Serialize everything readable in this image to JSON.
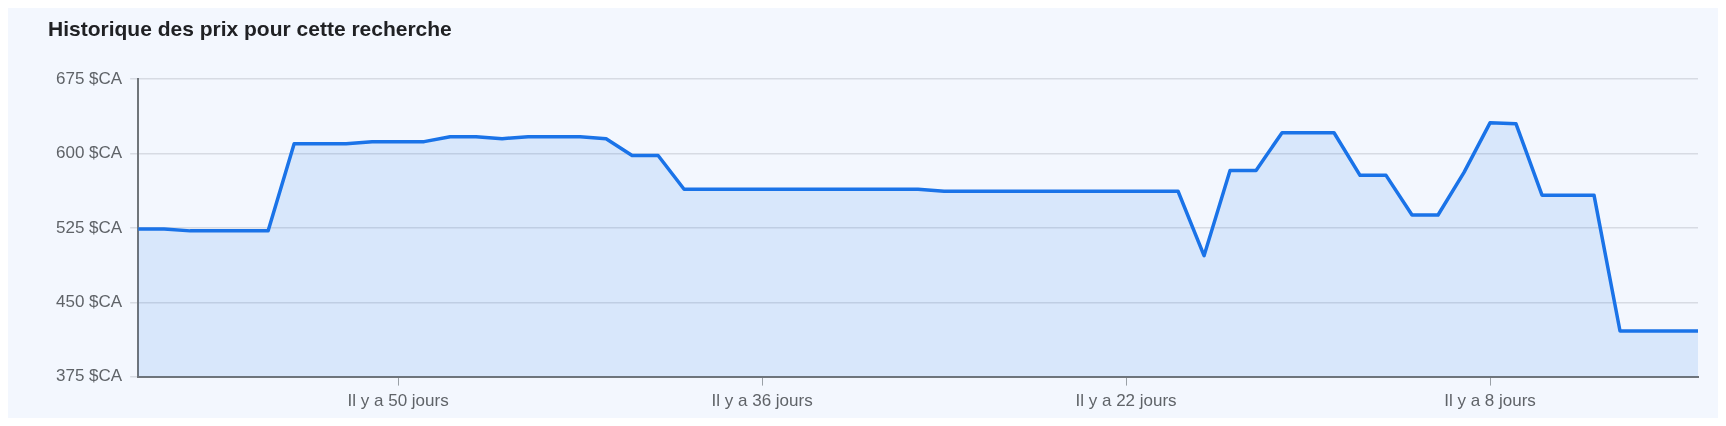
{
  "chart_data": {
    "type": "area",
    "title": "Historique des prix pour cette recherche",
    "categories": [
      null,
      null,
      null,
      null,
      null,
      null,
      null,
      null,
      null,
      null,
      "Il y a 50 jours",
      null,
      null,
      null,
      null,
      null,
      null,
      null,
      null,
      null,
      null,
      null,
      null,
      null,
      "Il y a 36 jours",
      null,
      null,
      null,
      null,
      null,
      null,
      null,
      null,
      null,
      null,
      null,
      null,
      null,
      "Il y a 22 jours",
      null,
      null,
      null,
      null,
      null,
      null,
      null,
      null,
      null,
      null,
      null,
      null,
      null,
      "Il y a 8 jours",
      null,
      null,
      null,
      null,
      null,
      null,
      null,
      null
    ],
    "series": [
      {
        "color": "#1a73e8",
        "values": [
          524,
          524,
          522,
          522,
          522,
          522,
          610,
          610,
          610,
          612,
          612,
          612,
          617,
          617,
          615,
          617,
          617,
          617,
          615,
          598,
          598,
          564,
          564,
          564,
          564,
          564,
          564,
          564,
          564,
          564,
          564,
          562,
          562,
          562,
          562,
          562,
          562,
          562,
          562,
          562,
          562,
          497,
          583,
          583,
          621,
          621,
          621,
          578,
          578,
          538,
          538,
          581,
          631,
          630,
          558,
          558,
          558,
          421,
          421,
          421,
          421
        ]
      }
    ],
    "ylim": [
      375,
      675
    ],
    "yticks": [
      {
        "value": 375,
        "label": "375 $CA"
      },
      {
        "value": 450,
        "label": "450 $CA"
      },
      {
        "value": 525,
        "label": "525 $CA"
      },
      {
        "value": 600,
        "label": "600 $CA"
      },
      {
        "value": 675,
        "label": "675 $CA"
      }
    ],
    "grid": "y",
    "legend": false
  }
}
